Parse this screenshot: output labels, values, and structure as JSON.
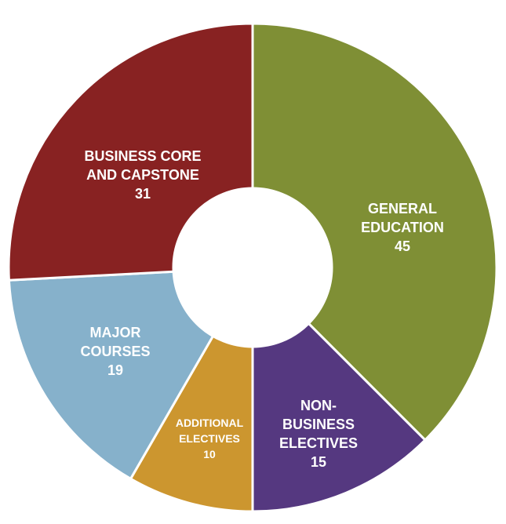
{
  "chart_data": {
    "type": "pie",
    "variant": "donut",
    "title": "",
    "slices": [
      {
        "label_lines": [
          "GENERAL",
          "EDUCATION"
        ],
        "value": 45,
        "value_label": "45",
        "color": "#7f8f35"
      },
      {
        "label_lines": [
          "NON-",
          "BUSINESS",
          "ELECTIVES"
        ],
        "value": 15,
        "value_label": "15",
        "color": "#553880"
      },
      {
        "label_lines": [
          "ADDITIONAL",
          "ELECTIVES"
        ],
        "value": 10,
        "value_label": "10",
        "color": "#cc962f"
      },
      {
        "label_lines": [
          "MAJOR",
          "COURSES"
        ],
        "value": 19,
        "value_label": "19",
        "color": "#86b1cb"
      },
      {
        "label_lines": [
          "BUSINESS CORE",
          "AND CAPSTONE"
        ],
        "value": 31,
        "value_label": "31",
        "color": "#882222"
      }
    ],
    "total": 120,
    "start": "top",
    "direction": "clockwise",
    "legend": "none",
    "separator_color": "#ffffff"
  }
}
